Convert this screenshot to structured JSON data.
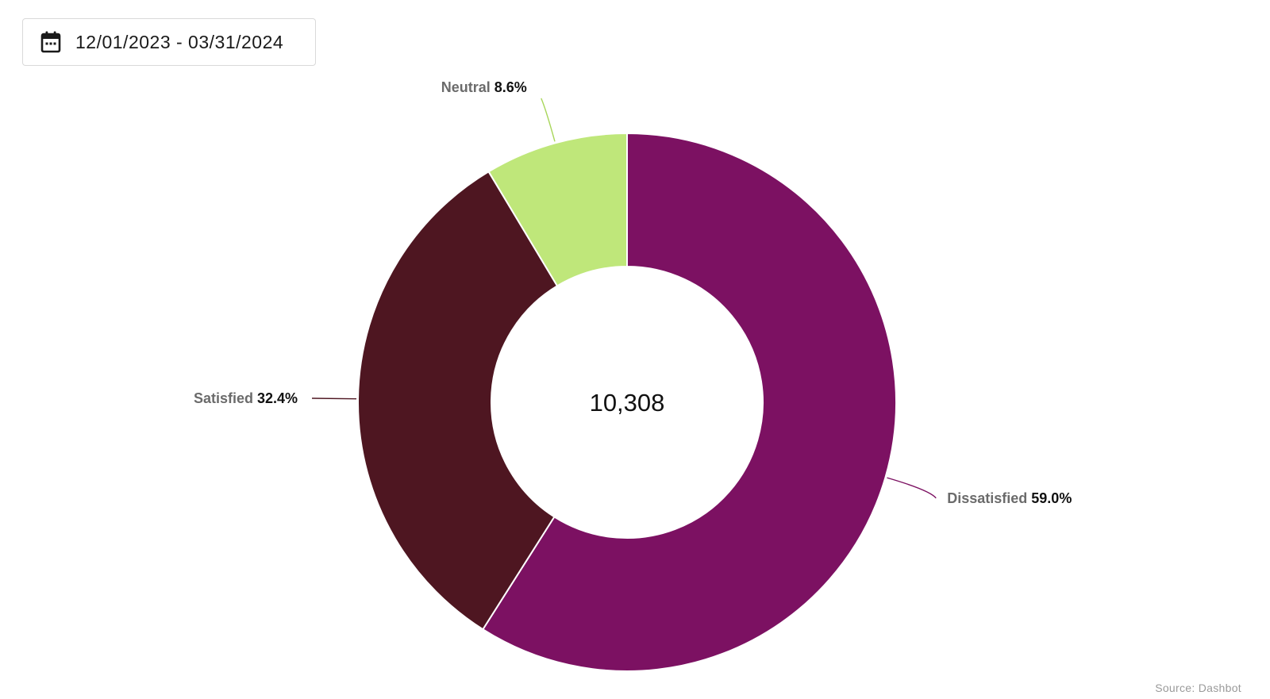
{
  "date_range": {
    "icon": "calendar-icon",
    "label": "12/01/2023 - 03/31/2024"
  },
  "chart_data": {
    "type": "pie",
    "donut": true,
    "center_label": "10,308",
    "slices": [
      {
        "label": "Dissatisfied",
        "percent_label": "59.0%",
        "value": 59.0,
        "color": "#7C1162"
      },
      {
        "label": "Satisfied",
        "percent_label": "32.4%",
        "value": 32.4,
        "color": "#4E1621"
      },
      {
        "label": "Neutral",
        "percent_label": "8.6%",
        "value": 8.6,
        "color": "#BFE77A"
      }
    ],
    "source": "Source: Dashbot"
  }
}
